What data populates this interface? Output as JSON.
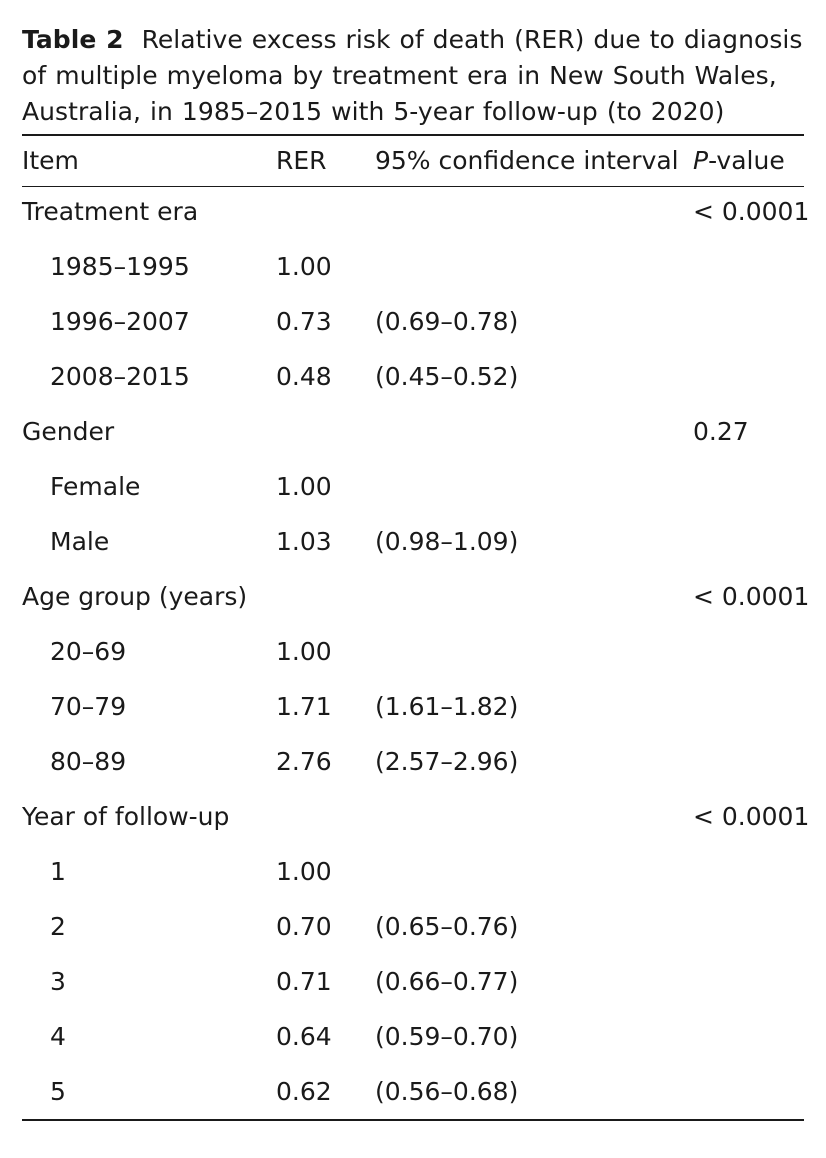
{
  "caption": {
    "label": "Table 2",
    "text": "Relative excess risk of death (RER) due to diagnosis of multiple myeloma by treatment era in New South Wales, Australia, in 1985–2015 with 5-year follow-up (to 2020)"
  },
  "header": {
    "item": "Item",
    "rer": "RER",
    "ci": "95% confidence interval",
    "p_italic": "P",
    "p_rest": "-value"
  },
  "rows": [
    {
      "kind": "group",
      "item": "Treatment era",
      "rer": "",
      "ci": "",
      "p": "< 0.0001"
    },
    {
      "kind": "sub",
      "item": "1985–1995",
      "rer": "1.00",
      "ci": "",
      "p": ""
    },
    {
      "kind": "sub",
      "item": "1996–2007",
      "rer": "0.73",
      "ci": "(0.69–0.78)",
      "p": ""
    },
    {
      "kind": "sub",
      "item": "2008–2015",
      "rer": "0.48",
      "ci": "(0.45–0.52)",
      "p": ""
    },
    {
      "kind": "group",
      "item": "Gender",
      "rer": "",
      "ci": "",
      "p": "0.27"
    },
    {
      "kind": "sub",
      "item": "Female",
      "rer": "1.00",
      "ci": "",
      "p": ""
    },
    {
      "kind": "sub",
      "item": "Male",
      "rer": "1.03",
      "ci": "(0.98–1.09)",
      "p": ""
    },
    {
      "kind": "group",
      "item": "Age group (years)",
      "rer": "",
      "ci": "",
      "p": "< 0.0001"
    },
    {
      "kind": "sub",
      "item": "20–69",
      "rer": "1.00",
      "ci": "",
      "p": ""
    },
    {
      "kind": "sub",
      "item": "70–79",
      "rer": "1.71",
      "ci": "(1.61–1.82)",
      "p": ""
    },
    {
      "kind": "sub",
      "item": "80–89",
      "rer": "2.76",
      "ci": "(2.57–2.96)",
      "p": ""
    },
    {
      "kind": "group",
      "item": "Year of follow-up",
      "rer": "",
      "ci": "",
      "p": "< 0.0001"
    },
    {
      "kind": "sub",
      "item": "1",
      "rer": "1.00",
      "ci": "",
      "p": ""
    },
    {
      "kind": "sub",
      "item": "2",
      "rer": "0.70",
      "ci": "(0.65–0.76)",
      "p": ""
    },
    {
      "kind": "sub",
      "item": "3",
      "rer": "0.71",
      "ci": "(0.66–0.77)",
      "p": ""
    },
    {
      "kind": "sub",
      "item": "4",
      "rer": "0.64",
      "ci": "(0.59–0.70)",
      "p": ""
    },
    {
      "kind": "sub",
      "item": "5",
      "rer": "0.62",
      "ci": "(0.56–0.68)",
      "p": ""
    }
  ]
}
